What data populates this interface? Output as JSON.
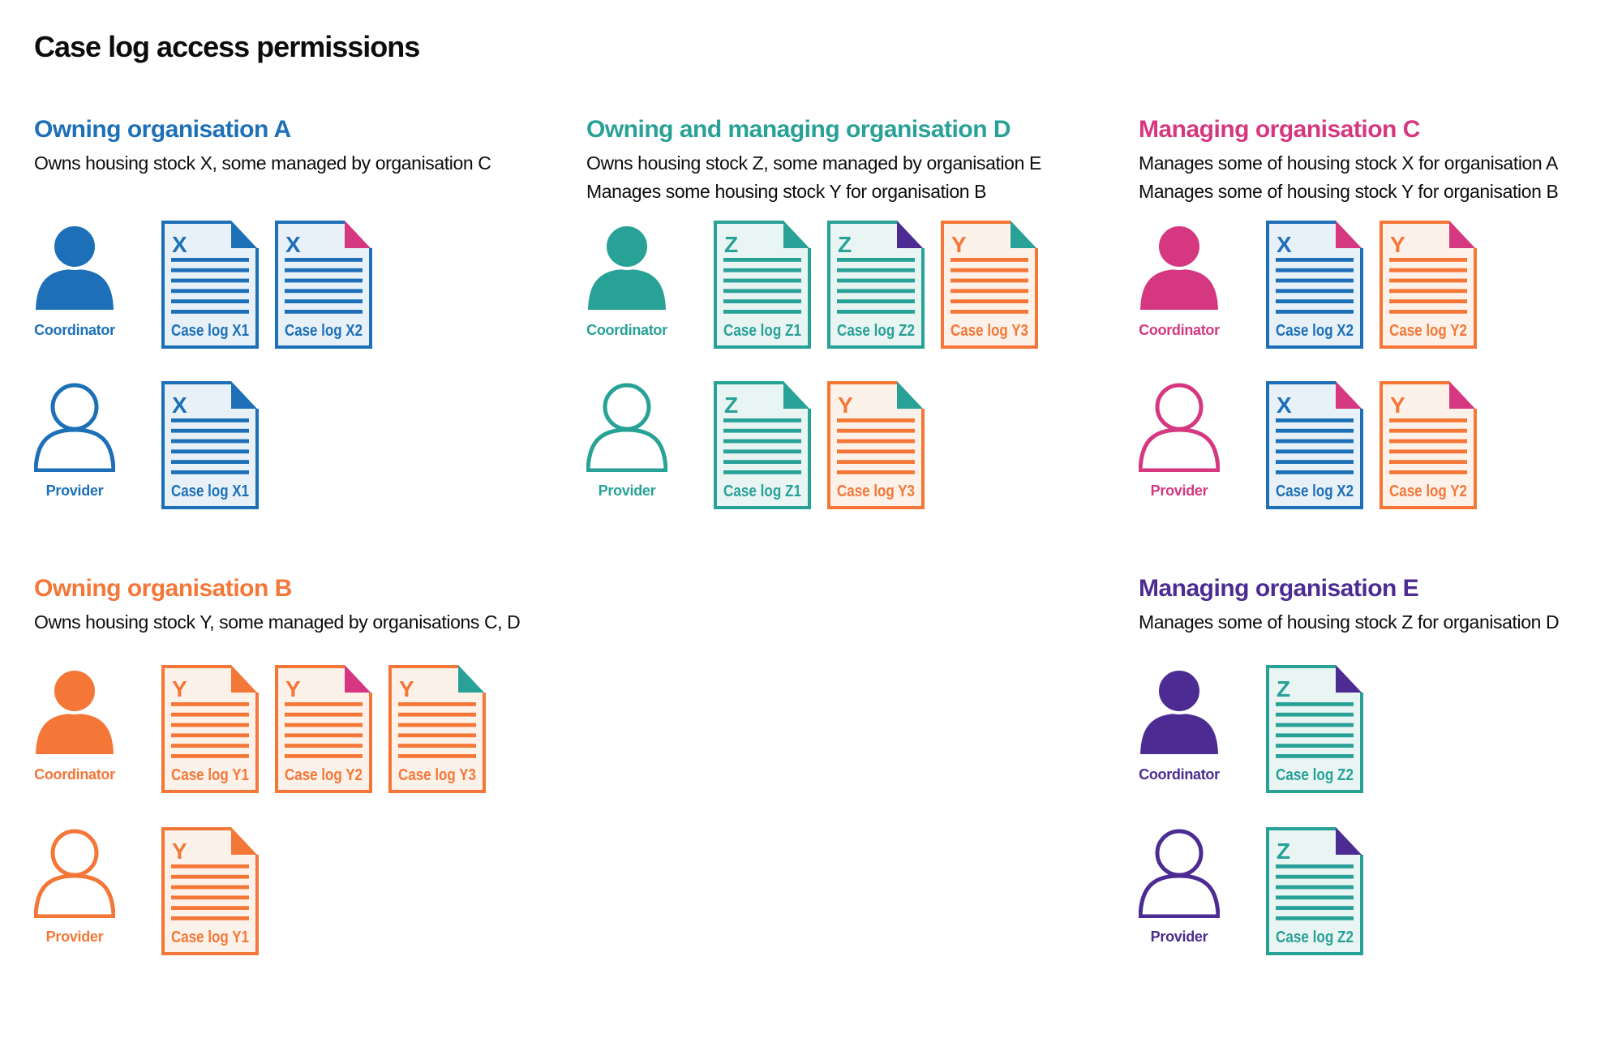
{
  "title": "Case log access permissions",
  "palette": {
    "blue": "#1d70b8",
    "blue_fill": "#e8f1f8",
    "teal": "#28a197",
    "teal_fill": "#e9f5f3",
    "orange": "#f47738",
    "orange_fill": "#fdf2ea",
    "pink": "#d53880",
    "purple": "#4c2c92",
    "text": "#0b0c0c",
    "background": "#ffffff"
  },
  "sections": [
    {
      "id": "org-a",
      "title": "Owning organisation A",
      "color": "blue",
      "description": [
        "Owns housing stock X, some managed by organisation C"
      ],
      "rows": [
        {
          "role": "Coordinator",
          "person_variant": "filled",
          "docs": [
            {
              "letter": "X",
              "label": "Case log X1",
              "doc_color": "blue",
              "fold_color": "blue"
            },
            {
              "letter": "X",
              "label": "Case log X2",
              "doc_color": "blue",
              "fold_color": "pink"
            }
          ]
        },
        {
          "role": "Provider",
          "person_variant": "outline",
          "docs": [
            {
              "letter": "X",
              "label": "Case log X1",
              "doc_color": "blue",
              "fold_color": "blue"
            }
          ]
        }
      ]
    },
    {
      "id": "org-d",
      "title": "Owning and managing organisation D",
      "color": "teal",
      "description": [
        "Owns housing stock Z, some managed by organisation E",
        "Manages some housing stock Y for organisation B"
      ],
      "rows": [
        {
          "role": "Coordinator",
          "person_variant": "filled",
          "docs": [
            {
              "letter": "Z",
              "label": "Case log Z1",
              "doc_color": "teal",
              "fold_color": "teal"
            },
            {
              "letter": "Z",
              "label": "Case log Z2",
              "doc_color": "teal",
              "fold_color": "purple"
            },
            {
              "letter": "Y",
              "label": "Case log Y3",
              "doc_color": "orange",
              "fold_color": "teal"
            }
          ]
        },
        {
          "role": "Provider",
          "person_variant": "outline",
          "docs": [
            {
              "letter": "Z",
              "label": "Case log Z1",
              "doc_color": "teal",
              "fold_color": "teal"
            },
            {
              "letter": "Y",
              "label": "Case log Y3",
              "doc_color": "orange",
              "fold_color": "teal"
            }
          ]
        }
      ]
    },
    {
      "id": "org-c",
      "title": "Managing organisation C",
      "color": "pink",
      "description": [
        "Manages some of housing stock X for organisation A",
        "Manages some of housing stock Y for organisation B"
      ],
      "rows": [
        {
          "role": "Coordinator",
          "person_variant": "filled",
          "docs": [
            {
              "letter": "X",
              "label": "Case log X2",
              "doc_color": "blue",
              "fold_color": "pink"
            },
            {
              "letter": "Y",
              "label": "Case log Y2",
              "doc_color": "orange",
              "fold_color": "pink"
            }
          ]
        },
        {
          "role": "Provider",
          "person_variant": "outline",
          "docs": [
            {
              "letter": "X",
              "label": "Case log X2",
              "doc_color": "blue",
              "fold_color": "pink"
            },
            {
              "letter": "Y",
              "label": "Case log Y2",
              "doc_color": "orange",
              "fold_color": "pink"
            }
          ]
        }
      ]
    },
    {
      "id": "org-b",
      "title": "Owning organisation B",
      "color": "orange",
      "description": [
        "Owns housing stock Y, some managed by organisations C, D"
      ],
      "rows": [
        {
          "role": "Coordinator",
          "person_variant": "filled",
          "docs": [
            {
              "letter": "Y",
              "label": "Case log Y1",
              "doc_color": "orange",
              "fold_color": "orange"
            },
            {
              "letter": "Y",
              "label": "Case log Y2",
              "doc_color": "orange",
              "fold_color": "pink"
            },
            {
              "letter": "Y",
              "label": "Case log Y3",
              "doc_color": "orange",
              "fold_color": "teal"
            }
          ]
        },
        {
          "role": "Provider",
          "person_variant": "outline",
          "docs": [
            {
              "letter": "Y",
              "label": "Case log Y1",
              "doc_color": "orange",
              "fold_color": "orange"
            }
          ]
        }
      ]
    },
    {
      "id": "org-e",
      "title": "Managing organisation E",
      "color": "purple",
      "description": [
        "Manages some of housing stock Z for organisation D"
      ],
      "rows": [
        {
          "role": "Coordinator",
          "person_variant": "filled",
          "docs": [
            {
              "letter": "Z",
              "label": "Case log Z2",
              "doc_color": "teal",
              "fold_color": "purple"
            }
          ]
        },
        {
          "role": "Provider",
          "person_variant": "outline",
          "docs": [
            {
              "letter": "Z",
              "label": "Case log Z2",
              "doc_color": "teal",
              "fold_color": "purple"
            }
          ]
        }
      ]
    }
  ]
}
